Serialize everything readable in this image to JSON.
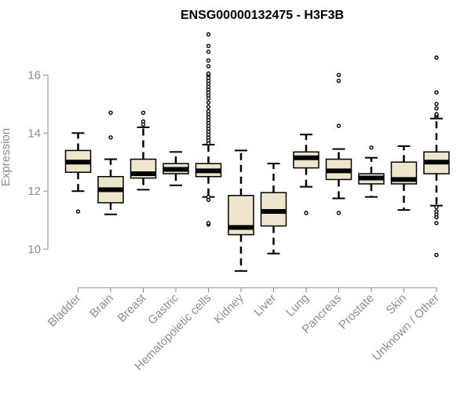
{
  "chart_data": {
    "type": "boxplot",
    "title": "ENSG00000132475 - H3F3B",
    "ylabel": "Expression",
    "xlabel": "",
    "ylim": [
      9.0,
      17.5
    ],
    "yticks": [
      10,
      12,
      14,
      16
    ],
    "grid": false,
    "colors": {
      "box_fill": "#ede5cc",
      "line": "#000000",
      "axis": "#8c8c8c",
      "label": "#8c8c8c"
    },
    "categories": [
      "Bladder",
      "Brain",
      "Breast",
      "Gastric",
      "Hematopoietic cells",
      "Kidney",
      "Liver",
      "Lung",
      "Pancreas",
      "Prostate",
      "Skin",
      "Unknown / Other"
    ],
    "boxes": [
      {
        "category": "Bladder",
        "whisker_low": 12.0,
        "q1": 12.65,
        "median": 13.0,
        "q3": 13.4,
        "whisker_high": 14.0,
        "outliers": [
          11.3
        ]
      },
      {
        "category": "Brain",
        "whisker_low": 11.2,
        "q1": 11.6,
        "median": 12.05,
        "q3": 12.5,
        "whisker_high": 13.1,
        "outliers": [
          13.85,
          14.7
        ]
      },
      {
        "category": "Breast",
        "whisker_low": 12.05,
        "q1": 12.45,
        "median": 12.6,
        "q3": 13.1,
        "whisker_high": 14.2,
        "outliers": [
          14.3,
          14.4,
          14.7
        ]
      },
      {
        "category": "Gastric",
        "whisker_low": 12.2,
        "q1": 12.6,
        "median": 12.75,
        "q3": 12.95,
        "whisker_high": 13.35,
        "outliers": []
      },
      {
        "category": "Hematopoietic cells",
        "whisker_low": 11.8,
        "q1": 12.5,
        "median": 12.7,
        "q3": 12.95,
        "whisker_high": 13.6,
        "outliers": [
          10.85,
          10.9,
          11.7,
          11.8,
          13.65,
          13.75,
          13.85,
          13.95,
          14.05,
          14.15,
          14.25,
          14.35,
          14.45,
          14.55,
          14.65,
          14.75,
          14.9,
          15.05,
          15.2,
          15.3,
          15.4,
          15.5,
          15.6,
          15.7,
          15.8,
          15.9,
          16.0,
          16.05,
          16.3,
          16.5,
          16.8,
          17.0,
          17.4
        ]
      },
      {
        "category": "Kidney",
        "whisker_low": 9.25,
        "q1": 10.5,
        "median": 10.75,
        "q3": 11.85,
        "whisker_high": 13.4,
        "outliers": []
      },
      {
        "category": "Liver",
        "whisker_low": 9.85,
        "q1": 10.8,
        "median": 11.3,
        "q3": 11.95,
        "whisker_high": 12.95,
        "outliers": []
      },
      {
        "category": "Lung",
        "whisker_low": 12.15,
        "q1": 12.8,
        "median": 13.15,
        "q3": 13.35,
        "whisker_high": 13.95,
        "outliers": [
          11.25
        ]
      },
      {
        "category": "Pancreas",
        "whisker_low": 11.75,
        "q1": 12.4,
        "median": 12.7,
        "q3": 13.1,
        "whisker_high": 13.45,
        "outliers": [
          11.25,
          14.25,
          15.8,
          16.0
        ]
      },
      {
        "category": "Prostate",
        "whisker_low": 11.8,
        "q1": 12.25,
        "median": 12.45,
        "q3": 12.6,
        "whisker_high": 13.15,
        "outliers": [
          13.5
        ]
      },
      {
        "category": "Skin",
        "whisker_low": 11.35,
        "q1": 12.25,
        "median": 12.4,
        "q3": 13.0,
        "whisker_high": 13.55,
        "outliers": []
      },
      {
        "category": "Unknown / Other",
        "whisker_low": 11.5,
        "q1": 12.6,
        "median": 13.0,
        "q3": 13.35,
        "whisker_high": 14.5,
        "outliers": [
          9.8,
          10.9,
          11.1,
          11.2,
          11.3,
          11.45,
          14.55,
          14.6,
          14.65,
          14.85,
          15.0,
          15.4,
          16.6
        ]
      }
    ]
  }
}
